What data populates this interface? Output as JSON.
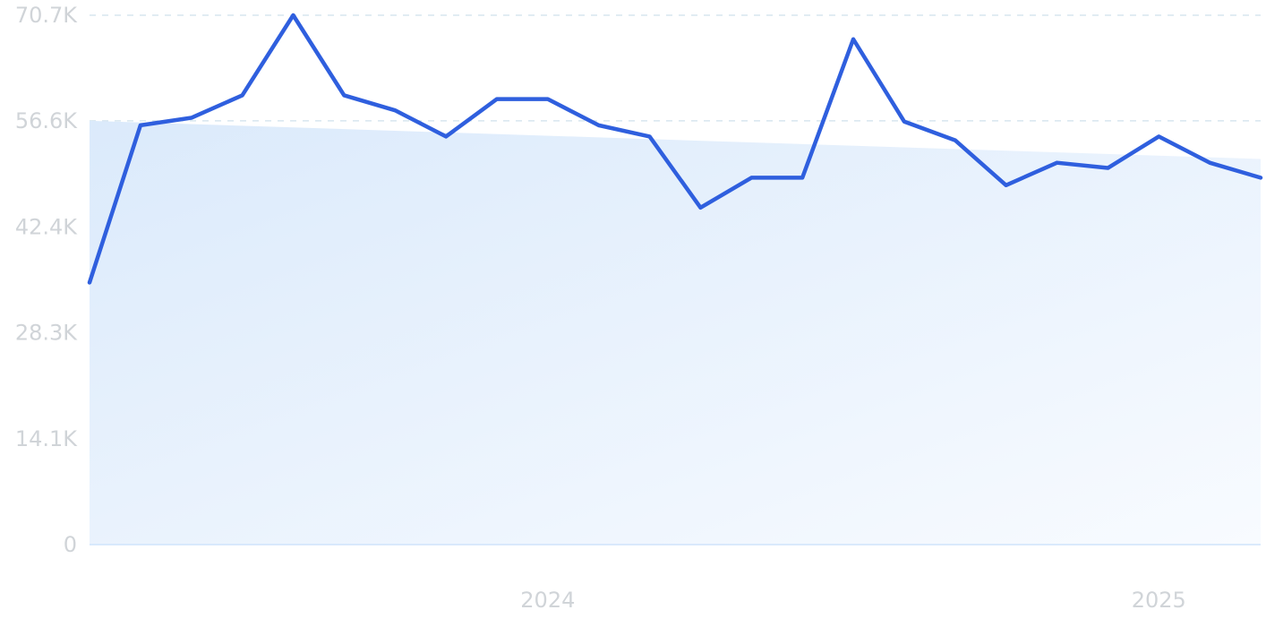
{
  "chart_data": {
    "type": "line",
    "title": "",
    "xlabel": "",
    "ylabel": "",
    "y_ticks": [
      "0",
      "14.1K",
      "28.3K",
      "42.4K",
      "56.6K",
      "70.7K"
    ],
    "y_tick_values": [
      0,
      14100,
      28300,
      42400,
      56600,
      70700
    ],
    "ylim": [
      0,
      70700
    ],
    "x_ticks": [
      {
        "label": "2024",
        "index": 9
      },
      {
        "label": "2025",
        "index": 21
      }
    ],
    "grid": true,
    "legend": "none",
    "colors": {
      "line": "#2f5fde",
      "area_start": "#dbeafb",
      "area_end": "#f8fbff",
      "grid": "#d7e6ef",
      "tick_text": "#d0d4d8"
    },
    "series": [
      {
        "values": [
          35000,
          56000,
          57000,
          60000,
          70700,
          60000,
          58000,
          54500,
          59500,
          59500,
          56000,
          54500,
          45000,
          49000,
          49000,
          67500,
          56500,
          54000,
          48000,
          51000,
          50300,
          54500,
          51000,
          49000
        ]
      }
    ],
    "trend_area": {
      "start": 56600,
      "end": 51500
    }
  }
}
